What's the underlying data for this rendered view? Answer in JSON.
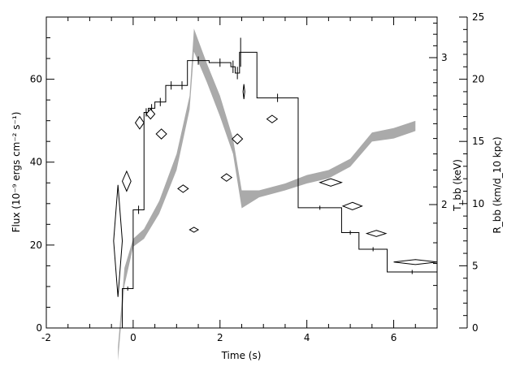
{
  "chart_data": {
    "type": "line",
    "xlabel": "Time (s)",
    "ylabel_left": "Flux (10⁻⁹ ergs cm⁻² s⁻¹)",
    "ylabel_middle": "T_bb (keV)",
    "ylabel_right": "R_bb (km/d_10 kpc)",
    "xlim": [
      -2,
      7
    ],
    "ylim_flux": [
      0,
      75
    ],
    "ylim_radius": [
      0,
      25
    ],
    "x_ticks": [
      -2,
      0,
      2,
      4,
      6
    ],
    "flux_ticks": [
      0,
      20,
      40,
      60
    ],
    "radius_ticks": [
      0,
      5,
      10,
      15,
      20,
      25
    ],
    "temperature_ticks": [
      2,
      3
    ],
    "temperature_labels": [
      "2",
      "3"
    ],
    "temperature_scale": "log",
    "series": [
      {
        "kind": "step-with-errors",
        "axis": "flux",
        "bins": [
          {
            "x0": -0.35,
            "x1": -0.25,
            "y": 0,
            "yerr": 0
          },
          {
            "x0": -0.25,
            "x1": 0.0,
            "y": 9.5,
            "yerr": 0.5
          },
          {
            "x0": 0.0,
            "x1": 0.25,
            "y": 28.5,
            "yerr": 1
          },
          {
            "x0": 0.25,
            "x1": 0.35,
            "y": 52,
            "yerr": 1
          },
          {
            "x0": 0.35,
            "x1": 0.5,
            "y": 53,
            "yerr": 1
          },
          {
            "x0": 0.5,
            "x1": 0.75,
            "y": 54.5,
            "yerr": 1
          },
          {
            "x0": 0.75,
            "x1": 1.0,
            "y": 58.5,
            "yerr": 1
          },
          {
            "x0": 1.0,
            "x1": 1.25,
            "y": 58.5,
            "yerr": 1
          },
          {
            "x0": 1.25,
            "x1": 1.75,
            "y": 64.5,
            "yerr": 1
          },
          {
            "x0": 1.75,
            "x1": 2.25,
            "y": 64,
            "yerr": 1
          },
          {
            "x0": 2.25,
            "x1": 2.35,
            "y": 63,
            "yerr": 1.5
          },
          {
            "x0": 2.35,
            "x1": 2.45,
            "y": 61.5,
            "yerr": 1.5
          },
          {
            "x0": 2.45,
            "x1": 2.5,
            "y": 66.5,
            "yerr": 3.5
          },
          {
            "x0": 2.5,
            "x1": 2.85,
            "y": 66.5,
            "yerr": 0
          },
          {
            "x0": 2.85,
            "x1": 3.8,
            "y": 55.5,
            "yerr": 1
          },
          {
            "x0": 3.8,
            "x1": 4.8,
            "y": 29,
            "yerr": 0.5
          },
          {
            "x0": 4.8,
            "x1": 5.2,
            "y": 23,
            "yerr": 0.5
          },
          {
            "x0": 5.2,
            "x1": 5.85,
            "y": 19,
            "yerr": 0.5
          },
          {
            "x0": 5.85,
            "x1": 7.0,
            "y": 13.5,
            "yerr": 0.5
          }
        ]
      },
      {
        "kind": "band",
        "axis": "temperature",
        "x": [
          -0.35,
          -0.2,
          0.0,
          0.25,
          0.6,
          1.0,
          1.3,
          1.4,
          1.7,
          2.0,
          2.3,
          2.5,
          2.9,
          3.5,
          4.0,
          4.5,
          5.0,
          5.5,
          6.0,
          6.5
        ],
        "y_lower": [
          1.3,
          1.6,
          1.78,
          1.82,
          1.95,
          2.2,
          2.6,
          3.05,
          2.8,
          2.55,
          2.3,
          1.98,
          2.04,
          2.08,
          2.12,
          2.15,
          2.22,
          2.38,
          2.4,
          2.45
        ],
        "y_upper": [
          1.35,
          1.68,
          1.82,
          1.87,
          2.02,
          2.3,
          2.7,
          3.25,
          2.95,
          2.7,
          2.4,
          2.08,
          2.08,
          2.12,
          2.17,
          2.2,
          2.27,
          2.44,
          2.47,
          2.52
        ]
      },
      {
        "kind": "diamond-errors",
        "axis": "radius",
        "points": [
          {
            "x": -0.35,
            "xerr": 0.1,
            "y": 7.0,
            "yerr": 4.5
          },
          {
            "x": -0.15,
            "xerr": 0.1,
            "y": 11.8,
            "yerr": 0.8
          },
          {
            "x": 0.15,
            "xerr": 0.1,
            "y": 16.5,
            "yerr": 0.5
          },
          {
            "x": 0.4,
            "xerr": 0.1,
            "y": 17.2,
            "yerr": 0.4
          },
          {
            "x": 0.65,
            "xerr": 0.12,
            "y": 15.6,
            "yerr": 0.4
          },
          {
            "x": 1.15,
            "xerr": 0.12,
            "y": 11.2,
            "yerr": 0.3
          },
          {
            "x": 1.4,
            "xerr": 0.1,
            "y": 7.9,
            "yerr": 0.2
          },
          {
            "x": 2.15,
            "xerr": 0.12,
            "y": 12.1,
            "yerr": 0.3
          },
          {
            "x": 2.4,
            "xerr": 0.12,
            "y": 15.2,
            "yerr": 0.4
          },
          {
            "x": 2.55,
            "xerr": 0.02,
            "y": 19.0,
            "yerr": 0.6
          },
          {
            "x": 3.2,
            "xerr": 0.12,
            "y": 16.8,
            "yerr": 0.3
          },
          {
            "x": 4.55,
            "xerr": 0.25,
            "y": 11.7,
            "yerr": 0.3
          },
          {
            "x": 5.05,
            "xerr": 0.22,
            "y": 9.8,
            "yerr": 0.3
          },
          {
            "x": 5.6,
            "xerr": 0.22,
            "y": 7.6,
            "yerr": 0.25
          },
          {
            "x": 6.5,
            "xerr": 0.5,
            "y": 5.3,
            "yerr": 0.2
          }
        ]
      }
    ],
    "grid": false,
    "legend": "none"
  }
}
